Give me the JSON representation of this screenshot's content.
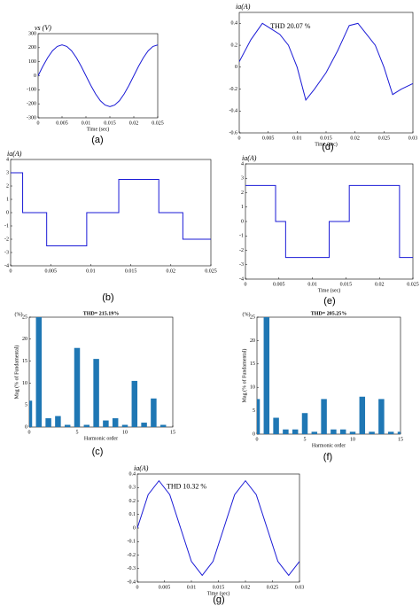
{
  "chart_data": [
    {
      "type": "line",
      "panel_label": "(a)",
      "ylabel": "vs (V)",
      "xlabel": "Time (sec)",
      "color": "#1a1ad6",
      "x": [
        0,
        0.001,
        0.002,
        0.003,
        0.004,
        0.005,
        0.006,
        0.007,
        0.008,
        0.009,
        0.01,
        0.011,
        0.012,
        0.013,
        0.014,
        0.015,
        0.016,
        0.017,
        0.018,
        0.019,
        0.02,
        0.021,
        0.022,
        0.023,
        0.024,
        0.025
      ],
      "values": [
        0,
        68,
        129,
        178,
        209,
        220,
        209,
        178,
        129,
        68,
        0,
        -68,
        -129,
        -178,
        -209,
        -220,
        -209,
        -178,
        -129,
        -68,
        0,
        68,
        129,
        178,
        209,
        220
      ],
      "xlim": [
        0,
        0.025
      ],
      "xticks": [
        0,
        0.005,
        0.01,
        0.015,
        0.02,
        0.025
      ],
      "ylim": [
        -300,
        300
      ],
      "yticks": [
        -300,
        -200,
        -100,
        0,
        100,
        200,
        300
      ]
    },
    {
      "type": "line",
      "panel_label": "(d)",
      "ylabel": "ia(A)",
      "xlabel": "Time (sec)",
      "annotation": "THD 20.07 %",
      "color": "#1a1ad6",
      "x": [
        0,
        0.002,
        0.004,
        0.0055,
        0.007,
        0.0085,
        0.01,
        0.0115,
        0.013,
        0.015,
        0.017,
        0.019,
        0.0205,
        0.022,
        0.0235,
        0.025,
        0.0265,
        0.028,
        0.03
      ],
      "values": [
        0.05,
        0.25,
        0.4,
        0.35,
        0.3,
        0.2,
        0,
        -0.3,
        -0.2,
        -0.05,
        0.15,
        0.38,
        0.4,
        0.3,
        0.2,
        0,
        -0.25,
        -0.2,
        -0.15
      ],
      "xlim": [
        0,
        0.03
      ],
      "xticks": [
        0,
        0.005,
        0.01,
        0.015,
        0.02,
        0.025,
        0.03
      ],
      "ylim": [
        -0.6,
        0.5
      ],
      "yticks": [
        -0.6,
        -0.4,
        -0.2,
        0,
        0.2,
        0.4
      ]
    },
    {
      "type": "line",
      "panel_label": "(b)",
      "ylabel": "ia(A)",
      "color": "#1a1ad6",
      "x": [
        0,
        0.0015,
        0.0015,
        0.0045,
        0.0045,
        0.0095,
        0.0095,
        0.0135,
        0.0135,
        0.0185,
        0.0185,
        0.0215,
        0.0215,
        0.025
      ],
      "values": [
        3,
        3,
        0,
        0,
        -2.5,
        -2.5,
        0,
        0,
        2.5,
        2.5,
        0,
        0,
        -2,
        -2
      ],
      "xlim": [
        0,
        0.025
      ],
      "xticks": [
        0,
        0.005,
        0.01,
        0.015,
        0.02,
        0.025
      ],
      "ylim": [
        -4,
        4
      ],
      "yticks": [
        -4,
        -3,
        -2,
        -1,
        0,
        1,
        2,
        3,
        4
      ]
    },
    {
      "type": "line",
      "panel_label": "(e)",
      "ylabel": "ia(A)",
      "xlabel": "Time (sec)",
      "color": "#1a1ad6",
      "x": [
        0,
        0.0045,
        0.0045,
        0.006,
        0.006,
        0.0125,
        0.0125,
        0.0155,
        0.0155,
        0.023,
        0.023,
        0.025
      ],
      "values": [
        2.5,
        2.5,
        0,
        0,
        -2.5,
        -2.5,
        0,
        0,
        2.5,
        2.5,
        -2.5,
        -2.5
      ],
      "xlim": [
        0,
        0.025
      ],
      "xticks": [
        0,
        0.005,
        0.01,
        0.015,
        0.02,
        0.025
      ],
      "ylim": [
        -4,
        4
      ],
      "yticks": [
        -4,
        -3,
        -2,
        -1,
        0,
        1,
        2,
        3,
        4
      ]
    },
    {
      "type": "bar",
      "panel_label": "(c)",
      "title": "THD= 215.19%",
      "ylabel": "Mag (% of Fundamental)",
      "yunit": "(%)",
      "xlabel": "Harmonic order",
      "color": "#1f77b4",
      "x": [
        0,
        1,
        2,
        3,
        4,
        5,
        6,
        7,
        8,
        9,
        10,
        11,
        12,
        13,
        14
      ],
      "values": [
        6,
        25,
        2,
        2.5,
        0.5,
        18,
        0.5,
        15.5,
        1.5,
        2,
        0.5,
        10.5,
        1,
        6.5,
        0.5
      ],
      "xlim": [
        0,
        15
      ],
      "xticks": [
        0,
        5,
        10,
        15
      ],
      "ylim": [
        0,
        25
      ],
      "yticks": [
        0,
        5,
        10,
        15,
        20,
        25
      ]
    },
    {
      "type": "bar",
      "panel_label": "(f)",
      "title": "THD= 205.25%",
      "ylabel": "Mag (% of Fundamental)",
      "yunit": "(%)",
      "xlabel": "Harmonic order",
      "color": "#1f77b4",
      "x": [
        0,
        1,
        2,
        3,
        4,
        5,
        6,
        7,
        8,
        9,
        10,
        11,
        12,
        13,
        14,
        15
      ],
      "values": [
        7.5,
        25,
        3.5,
        1,
        1,
        4.5,
        0.5,
        7.5,
        1,
        1,
        0.5,
        8,
        0.5,
        7.5,
        0.5,
        0.5
      ],
      "xlim": [
        0,
        15
      ],
      "xticks": [
        0,
        5,
        10,
        15
      ],
      "ylim": [
        0,
        25
      ],
      "yticks": [
        0,
        5,
        10,
        15,
        20,
        25
      ]
    },
    {
      "type": "line",
      "panel_label": "(g)",
      "ylabel": "ia(A)",
      "xlabel": "Time (sec)",
      "annotation": "THD 10.32 %",
      "color": "#1a1ad6",
      "x": [
        0,
        0.002,
        0.004,
        0.006,
        0.008,
        0.01,
        0.012,
        0.014,
        0.016,
        0.018,
        0.02,
        0.022,
        0.024,
        0.026,
        0.028,
        0.03
      ],
      "values": [
        0,
        0.247,
        0.35,
        0.247,
        0,
        -0.247,
        -0.35,
        -0.247,
        0,
        0.247,
        0.35,
        0.247,
        0,
        -0.247,
        -0.35,
        -0.247
      ],
      "xlim": [
        0,
        0.03
      ],
      "xticks": [
        0,
        0.005,
        0.01,
        0.015,
        0.02,
        0.025,
        0.03
      ],
      "ylim": [
        -0.4,
        0.4
      ],
      "yticks": [
        -0.4,
        -0.3,
        -0.2,
        -0.1,
        0,
        0.1,
        0.2,
        0.3,
        0.4
      ]
    }
  ]
}
